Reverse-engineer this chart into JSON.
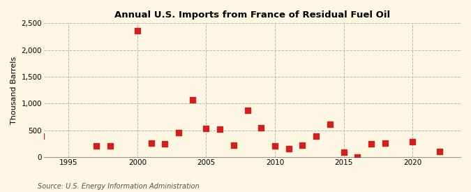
{
  "title": "Annual U.S. Imports from France of Residual Fuel Oil",
  "ylabel": "Thousand Barrels",
  "source": "Source: U.S. Energy Information Administration",
  "background_color": "#fdf6e3",
  "marker_color": "#cc2222",
  "marker_size": 36,
  "xlim": [
    1993.2,
    2023.5
  ],
  "ylim": [
    0,
    2500
  ],
  "yticks": [
    0,
    500,
    1000,
    1500,
    2000,
    2500
  ],
  "ytick_labels": [
    "0",
    "500",
    "1,000",
    "1,500",
    "2,000",
    "2,500"
  ],
  "xticks": [
    1995,
    2000,
    2005,
    2010,
    2015,
    2020
  ],
  "years": [
    1993,
    1997,
    1998,
    2000,
    2001,
    2002,
    2003,
    2004,
    2005,
    2006,
    2007,
    2008,
    2009,
    2010,
    2011,
    2012,
    2013,
    2014,
    2015,
    2016,
    2017,
    2018,
    2020,
    2022
  ],
  "values": [
    400,
    210,
    210,
    2360,
    260,
    250,
    460,
    1070,
    540,
    520,
    230,
    880,
    550,
    215,
    160,
    220,
    400,
    610,
    90,
    5,
    245,
    265,
    295,
    110
  ]
}
